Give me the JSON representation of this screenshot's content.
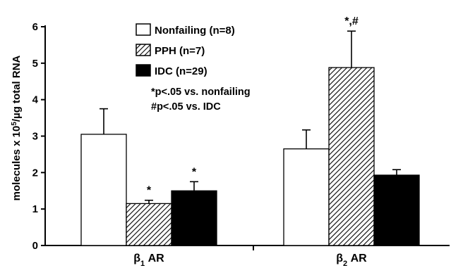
{
  "chart_data": {
    "type": "bar",
    "categories": [
      "β1 AR",
      "β2 AR"
    ],
    "category_labels": [
      {
        "prefix": "β",
        "sub": "1",
        "suffix": " AR"
      },
      {
        "prefix": "β",
        "sub": "2",
        "suffix": " AR"
      }
    ],
    "series": [
      {
        "name": "Nonfailing (n=8)",
        "fill": "white",
        "values": [
          3.05,
          2.65
        ],
        "errors": [
          0.7,
          0.52
        ]
      },
      {
        "name": "PPH (n=7)",
        "fill": "hatch",
        "values": [
          1.15,
          4.88
        ],
        "errors": [
          0.09,
          1.0
        ]
      },
      {
        "name": "IDC (n=29)",
        "fill": "black",
        "values": [
          1.5,
          1.93
        ],
        "errors": [
          0.25,
          0.15
        ]
      }
    ],
    "significance": [
      {
        "category": 0,
        "series": 1,
        "label": "*"
      },
      {
        "category": 0,
        "series": 2,
        "label": "*"
      },
      {
        "category": 1,
        "series": 1,
        "label": "*,#"
      }
    ],
    "notes": [
      "*p<.05 vs. nonfailing",
      "#p<.05 vs. IDC"
    ],
    "ylabel": {
      "prefix": "molecules x 10",
      "sup": "5",
      "suffix": "/µg total RNA"
    },
    "xlabel": "",
    "title": "",
    "ylim": [
      0,
      6
    ],
    "yticks": [
      0,
      1,
      2,
      3,
      4,
      5,
      6
    ],
    "grid": false,
    "legend_position": "top-center",
    "colors": {
      "axis": "#000000",
      "bar_border": "#000000",
      "black_fill": "#000000",
      "white_fill": "#ffffff"
    }
  }
}
